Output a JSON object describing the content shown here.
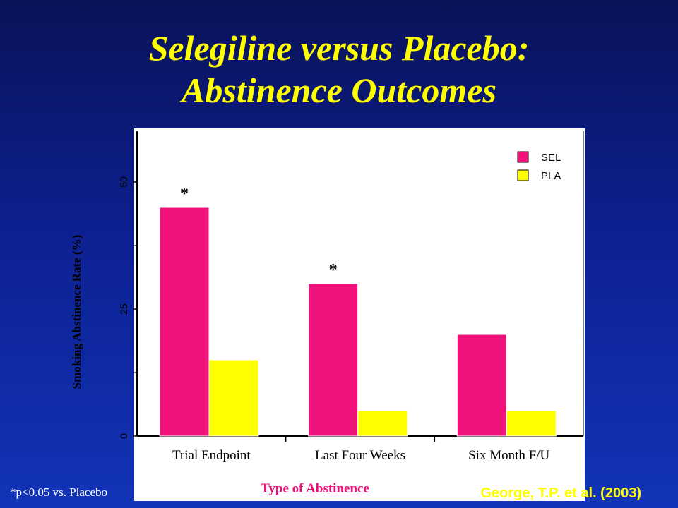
{
  "slide": {
    "title_line1": "Selegiline versus Placebo:",
    "title_line2": "Abstinence Outcomes",
    "footnote": "*p<0.05 vs. Placebo",
    "citation": "George, T.P. et al. (2003)"
  },
  "chart_data": {
    "type": "bar",
    "categories": [
      "Trial Endpoint",
      "Last Four Weeks",
      "Six Month F/U"
    ],
    "series": [
      {
        "name": "SEL",
        "color": "#f0137b",
        "values": [
          45,
          30,
          20
        ]
      },
      {
        "name": "PLA",
        "color": "#ffff00",
        "values": [
          15,
          5,
          5
        ]
      }
    ],
    "significance": [
      {
        "category": "Trial Endpoint",
        "series": "SEL",
        "marker": "*"
      },
      {
        "category": "Last Four Weeks",
        "series": "SEL",
        "marker": "*"
      }
    ],
    "xlabel": "Type of Abstinence",
    "ylabel": "Smoking Abstinence Rate (%)",
    "ylim": [
      0,
      60
    ],
    "yticks": [
      0,
      25,
      50
    ],
    "minor_yticks": [
      12.5,
      37.5
    ],
    "grid": false,
    "legend_position": "top-right",
    "plot_background": "#ffffff",
    "text_color": "#000000",
    "xlabel_color": "#e8137a"
  }
}
